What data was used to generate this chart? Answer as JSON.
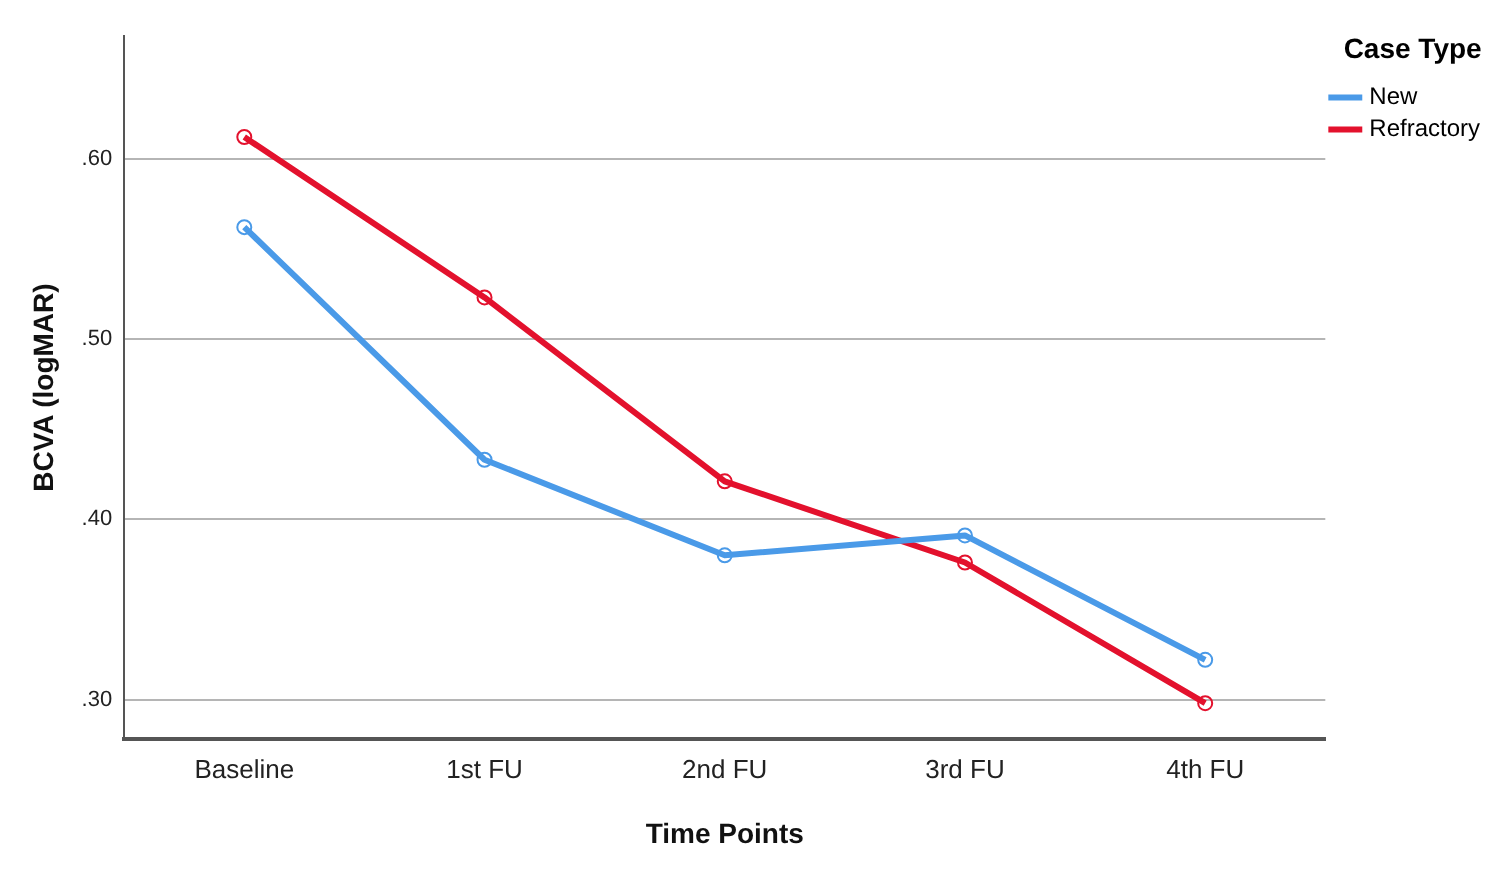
{
  "chart_data": {
    "type": "line",
    "xlabel": "Time Points",
    "ylabel": "BCVA (logMAR)",
    "legend_title": "Case Type",
    "categories": [
      "Baseline",
      "1st FU",
      "2nd FU",
      "3rd FU",
      "4th FU"
    ],
    "series": [
      {
        "name": "New",
        "color": "#4a9ae8",
        "values": [
          0.562,
          0.433,
          0.38,
          0.391,
          0.322
        ]
      },
      {
        "name": "Refractory",
        "color": "#e3112d",
        "values": [
          0.612,
          0.523,
          0.421,
          0.376,
          0.298
        ]
      }
    ],
    "ylim": [
      0.278,
      0.668
    ],
    "yticks": [
      {
        "value": 0.3,
        "label": ".30"
      },
      {
        "value": 0.4,
        "label": ".40"
      },
      {
        "value": 0.5,
        "label": ".50"
      },
      {
        "value": 0.6,
        "label": ".60"
      }
    ],
    "grid": "y",
    "legend": "top right",
    "marker": "circle",
    "line_style": "solid"
  }
}
